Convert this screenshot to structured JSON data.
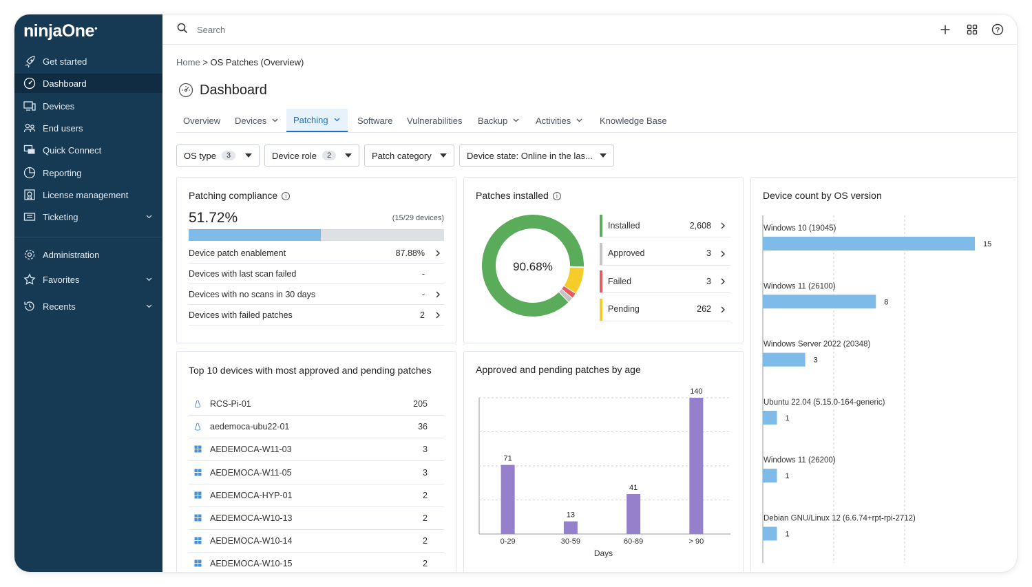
{
  "app": {
    "logo": "ninjaOne"
  },
  "sidebar": {
    "items": [
      {
        "label": "Get started",
        "icon": "rocket-icon"
      },
      {
        "label": "Dashboard",
        "icon": "gauge-icon",
        "active": true
      },
      {
        "label": "Devices",
        "icon": "devices-icon"
      },
      {
        "label": "End users",
        "icon": "users-icon"
      },
      {
        "label": "Quick Connect",
        "icon": "quick-connect-icon"
      },
      {
        "label": "Reporting",
        "icon": "reporting-icon"
      },
      {
        "label": "License management",
        "icon": "license-icon"
      },
      {
        "label": "Ticketing",
        "icon": "ticket-icon",
        "expandable": true
      },
      {
        "label": "Administration",
        "icon": "gear-icon"
      },
      {
        "label": "Favorites",
        "icon": "star-icon",
        "expandable": true
      },
      {
        "label": "Recents",
        "icon": "history-icon",
        "expandable": true
      }
    ]
  },
  "topbar": {
    "search_placeholder": "Search"
  },
  "breadcrumb": {
    "home": "Home",
    "separator": ">",
    "current": "OS Patches (Overview)"
  },
  "page": {
    "title": "Dashboard"
  },
  "tabs": [
    {
      "label": "Overview",
      "dropdown": false
    },
    {
      "label": "Devices",
      "dropdown": true
    },
    {
      "label": "Patching",
      "dropdown": true,
      "active": true
    },
    {
      "label": "Software",
      "dropdown": false
    },
    {
      "label": "Vulnerabilities",
      "dropdown": false
    },
    {
      "label": "Backup",
      "dropdown": true
    },
    {
      "label": "Activities",
      "dropdown": true
    },
    {
      "label": "Knowledge Base",
      "dropdown": false
    }
  ],
  "filters": [
    {
      "label": "OS type",
      "badge": "3"
    },
    {
      "label": "Device role",
      "badge": "2"
    },
    {
      "label": "Patch category"
    },
    {
      "label": "Device state:",
      "value": "Online in the las..."
    }
  ],
  "compliance": {
    "title": "Patching compliance",
    "percent": "51.72%",
    "fraction": 0.5172,
    "devices": "(15/29 devices)",
    "rows": [
      {
        "label": "Device patch enablement",
        "value": "87.88%",
        "arrow": true
      },
      {
        "label": "Devices with last scan failed",
        "value": "-",
        "arrow": false
      },
      {
        "label": "Devices with no scans in 30 days",
        "value": "-",
        "arrow": true
      },
      {
        "label": "Devices with failed patches",
        "value": "2",
        "arrow": true
      }
    ]
  },
  "installed": {
    "title": "Patches installed",
    "center": "90.68%",
    "legend": [
      {
        "label": "Installed",
        "value": "2,608",
        "color": "#5aab5a"
      },
      {
        "label": "Approved",
        "value": "3",
        "color": "#c4c4c4"
      },
      {
        "label": "Failed",
        "value": "3",
        "color": "#e45c64"
      },
      {
        "label": "Pending",
        "value": "262",
        "color": "#f5cc2a"
      }
    ]
  },
  "top_devices": {
    "title": "Top 10 devices with most approved and pending patches",
    "rows": [
      {
        "name": "RCS-Pi-01",
        "value": "205",
        "os": "linux-icon"
      },
      {
        "name": "aedemoca-ubu22-01",
        "value": "36",
        "os": "linux-icon"
      },
      {
        "name": "AEDEMOCA-W11-03",
        "value": "3",
        "os": "windows-icon"
      },
      {
        "name": "AEDEMOCA-W11-05",
        "value": "3",
        "os": "windows-icon"
      },
      {
        "name": "AEDEMOCA-HYP-01",
        "value": "2",
        "os": "windows-icon"
      },
      {
        "name": "AEDEMOCA-W10-13",
        "value": "2",
        "os": "windows-icon"
      },
      {
        "name": "AEDEMOCA-W10-14",
        "value": "2",
        "os": "windows-icon"
      },
      {
        "name": "AEDEMOCA-W10-15",
        "value": "2",
        "os": "windows-icon"
      }
    ]
  },
  "age_card": {
    "title": "Approved and pending patches by age"
  },
  "os_card": {
    "title": "Device count by OS version"
  },
  "chart_data": [
    {
      "type": "pie",
      "title": "Patches installed",
      "categories": [
        "Installed",
        "Approved",
        "Failed",
        "Pending"
      ],
      "values": [
        2608,
        3,
        3,
        262
      ],
      "center_label": "90.68%"
    },
    {
      "type": "bar",
      "title": "Approved and pending patches by age",
      "categories": [
        "0-29",
        "30-59",
        "60-89",
        "> 90"
      ],
      "values": [
        71,
        13,
        41,
        140
      ],
      "xlabel": "Days",
      "ylim": [
        0,
        140
      ],
      "grid": true,
      "color": "#9580cc"
    },
    {
      "type": "bar",
      "orientation": "horizontal",
      "title": "Device count by OS version",
      "categories": [
        "Windows 10 (19045)",
        "Windows 11 (26100)",
        "Windows Server 2022 (20348)",
        "Ubuntu 22.04 (5.15.0-164-generic)",
        "Windows 11 (26200)",
        "Debian GNU/Linux 12 (6.6.74+rpt-rpi-2712)"
      ],
      "values": [
        15,
        8,
        3,
        1,
        1,
        1
      ],
      "grid": true,
      "color": "#7fbbe8"
    }
  ]
}
